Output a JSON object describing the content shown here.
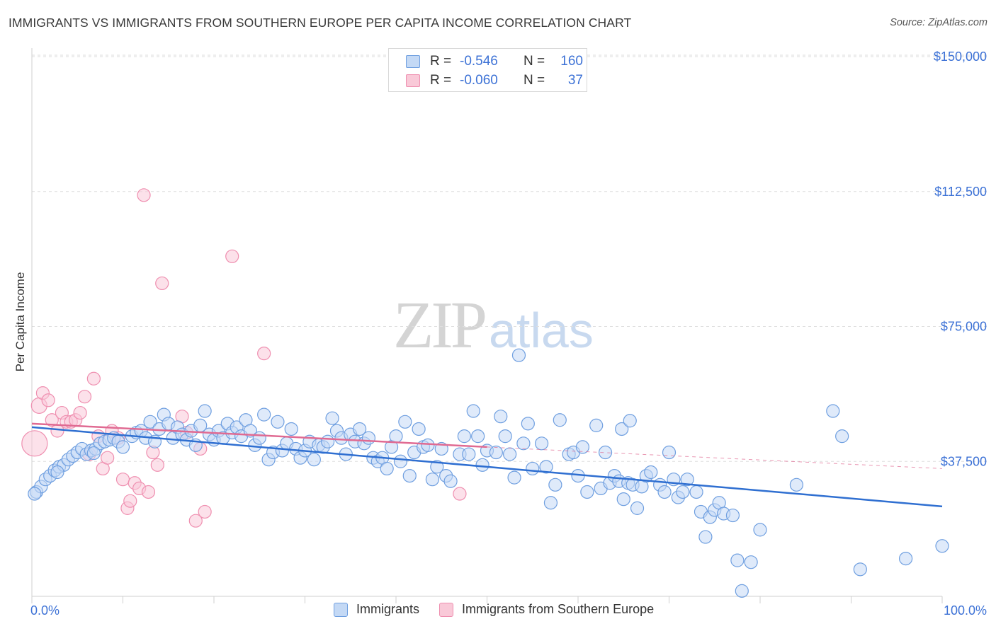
{
  "title": "IMMIGRANTS VS IMMIGRANTS FROM SOUTHERN EUROPE PER CAPITA INCOME CORRELATION CHART",
  "source": "Source: ZipAtlas.com",
  "watermark": {
    "zip": "ZIP",
    "atlas": "atlas"
  },
  "legend": {
    "rows": [
      {
        "r_label": "R =",
        "r_value": "-0.546",
        "n_label": "N =",
        "n_value": "160",
        "color": "#8db8ea"
      },
      {
        "r_label": "R =",
        "r_value": "-0.060",
        "n_label": "N =",
        "n_value": "37",
        "color": "#f4a8c0"
      }
    ]
  },
  "bottom_legend": [
    {
      "label": "Immigrants",
      "color": "#8db8ea"
    },
    {
      "label": "Immigrants from Southern Europe",
      "color": "#f4a8c0"
    }
  ],
  "colors": {
    "blue_fill": "#c4d9f5",
    "blue_stroke": "#6f9fe0",
    "blue_line": "#2f6fd1",
    "pink_fill": "#f9c9d8",
    "pink_stroke": "#ef8fb0",
    "pink_line": "#e06a92",
    "axis_label": "#3d72d6",
    "grid": "#dedede"
  },
  "chart_data": {
    "type": "scatter",
    "title": "IMMIGRANTS VS IMMIGRANTS FROM SOUTHERN EUROPE PER CAPITA INCOME CORRELATION CHART",
    "xlabel": "",
    "ylabel": "Per Capita Income",
    "xlim": [
      0,
      100
    ],
    "ylim": [
      0,
      155000
    ],
    "x_tick_labels": [
      "0.0%",
      "100.0%"
    ],
    "y_ticks": [
      {
        "value": 37500,
        "label": "$37,500"
      },
      {
        "value": 75000,
        "label": "$75,000"
      },
      {
        "value": 112500,
        "label": "$112,500"
      },
      {
        "value": 150000,
        "label": "$150,000"
      }
    ],
    "grid": true,
    "legend_position": "top-center",
    "series": [
      {
        "name": "Immigrants",
        "R": -0.546,
        "N": 160,
        "trend": {
          "x": [
            0,
            100
          ],
          "y": [
            47000,
            25000
          ]
        },
        "points": [
          [
            0.5,
            29000
          ],
          [
            1,
            30500
          ],
          [
            1.5,
            32500
          ],
          [
            2,
            33500
          ],
          [
            2.5,
            35000
          ],
          [
            3,
            36000
          ],
          [
            3.5,
            36500
          ],
          [
            4,
            38000
          ],
          [
            4.5,
            39000
          ],
          [
            5,
            40000
          ],
          [
            5.5,
            41000
          ],
          [
            6,
            39500
          ],
          [
            6.5,
            40500
          ],
          [
            7,
            41000
          ],
          [
            7.5,
            42500
          ],
          [
            8,
            43000
          ],
          [
            8.5,
            43500
          ],
          [
            9,
            44000
          ],
          [
            9.5,
            43000
          ],
          [
            10,
            41500
          ],
          [
            11,
            44500
          ],
          [
            11.5,
            45500
          ],
          [
            12,
            46000
          ],
          [
            12.5,
            44000
          ],
          [
            13,
            48500
          ],
          [
            13.5,
            43000
          ],
          [
            14,
            46500
          ],
          [
            14.5,
            50500
          ],
          [
            15,
            48000
          ],
          [
            15.5,
            44000
          ],
          [
            16,
            47000
          ],
          [
            16.5,
            45000
          ],
          [
            17,
            43500
          ],
          [
            17.5,
            46000
          ],
          [
            18,
            42000
          ],
          [
            18.5,
            47500
          ],
          [
            19,
            51500
          ],
          [
            19.5,
            45000
          ],
          [
            20,
            43500
          ],
          [
            20.5,
            46000
          ],
          [
            21,
            44000
          ],
          [
            21.5,
            48000
          ],
          [
            22,
            45500
          ],
          [
            22.5,
            47000
          ],
          [
            23,
            44500
          ],
          [
            23.5,
            49000
          ],
          [
            24,
            46000
          ],
          [
            24.5,
            42000
          ],
          [
            25,
            44000
          ],
          [
            25.5,
            50500
          ],
          [
            26,
            38000
          ],
          [
            26.5,
            40000
          ],
          [
            27,
            48500
          ],
          [
            27.5,
            40500
          ],
          [
            28,
            42500
          ],
          [
            28.5,
            46500
          ],
          [
            29,
            41000
          ],
          [
            29.5,
            38500
          ],
          [
            30,
            40500
          ],
          [
            30.5,
            43000
          ],
          [
            31,
            38000
          ],
          [
            31.5,
            42000
          ],
          [
            32,
            41500
          ],
          [
            32.5,
            43000
          ],
          [
            33,
            49500
          ],
          [
            33.5,
            46000
          ],
          [
            34,
            44000
          ],
          [
            34.5,
            39500
          ],
          [
            35,
            45000
          ],
          [
            35.5,
            43000
          ],
          [
            36,
            46500
          ],
          [
            36.5,
            42500
          ],
          [
            37,
            44000
          ],
          [
            37.5,
            38500
          ],
          [
            38,
            37500
          ],
          [
            38.5,
            38500
          ],
          [
            39,
            35500
          ],
          [
            39.5,
            41500
          ],
          [
            40,
            44500
          ],
          [
            40.5,
            37500
          ],
          [
            41,
            48500
          ],
          [
            41.5,
            33500
          ],
          [
            42,
            40000
          ],
          [
            42.5,
            46500
          ],
          [
            43,
            41500
          ],
          [
            43.5,
            42000
          ],
          [
            44,
            32500
          ],
          [
            44.5,
            36000
          ],
          [
            45,
            41000
          ],
          [
            45.5,
            33500
          ],
          [
            46,
            32000
          ],
          [
            47,
            39500
          ],
          [
            47.5,
            44500
          ],
          [
            48,
            39500
          ],
          [
            48.5,
            51500
          ],
          [
            49,
            44500
          ],
          [
            49.5,
            36500
          ],
          [
            50,
            40500
          ],
          [
            51,
            40000
          ],
          [
            51.5,
            50000
          ],
          [
            52,
            44500
          ],
          [
            52.5,
            39500
          ],
          [
            53,
            33000
          ],
          [
            54,
            42500
          ],
          [
            54.5,
            48000
          ],
          [
            55,
            35500
          ],
          [
            56,
            42500
          ],
          [
            56.5,
            36000
          ],
          [
            57,
            26000
          ],
          [
            57.5,
            31000
          ],
          [
            58,
            49000
          ],
          [
            59,
            39500
          ],
          [
            59.5,
            40000
          ],
          [
            60,
            33500
          ],
          [
            60.5,
            41500
          ],
          [
            61,
            29000
          ],
          [
            62,
            47500
          ],
          [
            62.5,
            30000
          ],
          [
            63,
            40000
          ],
          [
            63.5,
            31500
          ],
          [
            64,
            33500
          ],
          [
            64.5,
            32000
          ],
          [
            64.8,
            46500
          ],
          [
            65,
            27000
          ],
          [
            65.5,
            31500
          ],
          [
            65.7,
            48800
          ],
          [
            66,
            31000
          ],
          [
            66.5,
            24500
          ],
          [
            67,
            30500
          ],
          [
            67.5,
            33500
          ],
          [
            68,
            34500
          ],
          [
            69,
            31000
          ],
          [
            69.5,
            29000
          ],
          [
            70,
            40000
          ],
          [
            70.5,
            32500
          ],
          [
            71,
            27500
          ],
          [
            71.5,
            29000
          ],
          [
            72,
            32500
          ],
          [
            73,
            29000
          ],
          [
            73.5,
            23500
          ],
          [
            74,
            16500
          ],
          [
            74.5,
            22000
          ],
          [
            75,
            24000
          ],
          [
            75.5,
            26000
          ],
          [
            76,
            23000
          ],
          [
            77,
            22500
          ],
          [
            77.5,
            10000
          ],
          [
            78,
            1500
          ],
          [
            79,
            9500
          ],
          [
            80,
            18500
          ],
          [
            53.5,
            67000
          ],
          [
            88,
            51500
          ],
          [
            89,
            44500
          ],
          [
            84,
            31000
          ],
          [
            91,
            7500
          ],
          [
            96,
            10500
          ],
          [
            100,
            14000
          ],
          [
            0.3,
            28500
          ],
          [
            2.8,
            34500
          ],
          [
            6.8,
            39800
          ]
        ]
      },
      {
        "name": "Immigrants from Southern Europe",
        "R": -0.06,
        "N": 37,
        "trend": {
          "x": [
            0,
            50
          ],
          "y": [
            48000,
            41500
          ]
        },
        "trend_dashed": {
          "x": [
            50,
            100
          ],
          "y": [
            41500,
            35500
          ]
        },
        "points": [
          [
            0.3,
            42500
          ],
          [
            0.8,
            53000
          ],
          [
            1.2,
            56500
          ],
          [
            1.8,
            54500
          ],
          [
            2.2,
            49000
          ],
          [
            2.8,
            46000
          ],
          [
            3.3,
            51000
          ],
          [
            3.8,
            48500
          ],
          [
            4.3,
            48500
          ],
          [
            4.8,
            49000
          ],
          [
            5.3,
            51000
          ],
          [
            5.8,
            55500
          ],
          [
            6.3,
            39500
          ],
          [
            6.8,
            60500
          ],
          [
            7.3,
            44500
          ],
          [
            7.8,
            35500
          ],
          [
            8.3,
            38500
          ],
          [
            8.8,
            46000
          ],
          [
            9.5,
            44000
          ],
          [
            10,
            32500
          ],
          [
            10.5,
            24500
          ],
          [
            10.8,
            26500
          ],
          [
            11.3,
            31500
          ],
          [
            11.8,
            30000
          ],
          [
            12.3,
            111500
          ],
          [
            12.8,
            29000
          ],
          [
            13.3,
            40000
          ],
          [
            13.8,
            36500
          ],
          [
            14.3,
            87000
          ],
          [
            16.5,
            50000
          ],
          [
            18.5,
            41000
          ],
          [
            18,
            21000
          ],
          [
            19,
            23500
          ],
          [
            22,
            94500
          ],
          [
            25.5,
            67500
          ],
          [
            47,
            28500
          ],
          [
            17,
            45500
          ]
        ]
      }
    ]
  }
}
